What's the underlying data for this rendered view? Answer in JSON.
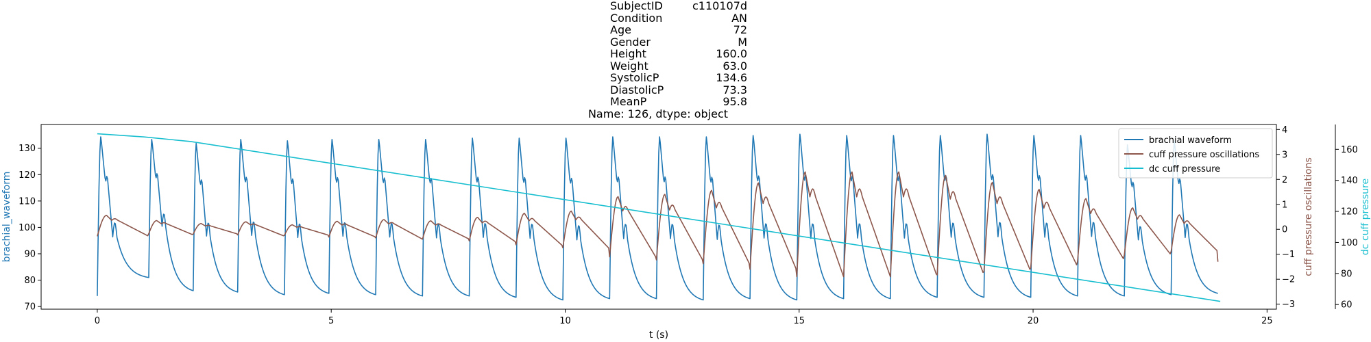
{
  "title": {
    "rows": [
      {
        "key": "SubjectID",
        "value": "c110107d"
      },
      {
        "key": "Condition",
        "value": "AN"
      },
      {
        "key": "Age",
        "value": "72"
      },
      {
        "key": "Gender",
        "value": "M"
      },
      {
        "key": "Height",
        "value": "160.0"
      },
      {
        "key": "Weight",
        "value": "63.0"
      },
      {
        "key": "SystolicP",
        "value": "134.6"
      },
      {
        "key": "DiastolicP",
        "value": "73.3"
      },
      {
        "key": "MeanP",
        "value": "95.8"
      }
    ],
    "footer": "Name: 126, dtype: object"
  },
  "chart_data": {
    "type": "line",
    "xlabel": "t (s)",
    "xlim": [
      -1.2,
      25.2
    ],
    "xticks": [
      0,
      5,
      10,
      15,
      20,
      25
    ],
    "axes": [
      {
        "id": "left",
        "ylabel": "brachial_waveform",
        "ylim": [
          69,
          139
        ],
        "yticks": [
          70,
          80,
          90,
          100,
          110,
          120,
          130
        ],
        "color": "#1f77b4"
      },
      {
        "id": "right1",
        "ylabel": "cuff pressure oscillations",
        "ylim": [
          -3.2,
          4.2
        ],
        "yticks": [
          -3,
          -2,
          -1,
          0,
          1,
          2,
          3,
          4
        ],
        "color": "#8c564b"
      },
      {
        "id": "right2",
        "ylabel": "dc cuff pressure",
        "ylim": [
          57,
          176
        ],
        "yticks": [
          60,
          80,
          100,
          120,
          140,
          160
        ],
        "color": "#17becf"
      }
    ],
    "legend": {
      "placement": "top-right"
    },
    "series": [
      {
        "name": "brachial waveform",
        "axis": "left",
        "color": "#1f77b4",
        "beats": [
          {
            "t": 0.0,
            "peak": 134.5,
            "trough": 74.0
          },
          {
            "t": 1.1,
            "peak": 133.5,
            "trough": 81.0
          },
          {
            "t": 2.05,
            "peak": 132.0,
            "trough": 76.0
          },
          {
            "t": 3.0,
            "peak": 133.5,
            "trough": 75.5
          },
          {
            "t": 4.0,
            "peak": 133.0,
            "trough": 74.5
          },
          {
            "t": 4.95,
            "peak": 133.5,
            "trough": 75.0
          },
          {
            "t": 5.95,
            "peak": 133.5,
            "trough": 74.5
          },
          {
            "t": 6.95,
            "peak": 133.5,
            "trough": 74.0
          },
          {
            "t": 7.95,
            "peak": 134.0,
            "trough": 74.0
          },
          {
            "t": 8.95,
            "peak": 134.0,
            "trough": 73.5
          },
          {
            "t": 9.95,
            "peak": 134.0,
            "trough": 72.5
          },
          {
            "t": 10.95,
            "peak": 134.5,
            "trough": 73.0
          },
          {
            "t": 11.95,
            "peak": 134.5,
            "trough": 73.0
          },
          {
            "t": 12.95,
            "peak": 134.5,
            "trough": 72.5
          },
          {
            "t": 13.95,
            "peak": 135.0,
            "trough": 73.0
          },
          {
            "t": 14.95,
            "peak": 135.5,
            "trough": 72.5
          },
          {
            "t": 15.95,
            "peak": 135.0,
            "trough": 73.0
          },
          {
            "t": 16.95,
            "peak": 135.0,
            "trough": 73.0
          },
          {
            "t": 17.95,
            "peak": 135.0,
            "trough": 73.5
          },
          {
            "t": 18.95,
            "peak": 135.5,
            "trough": 73.5
          },
          {
            "t": 19.95,
            "peak": 135.0,
            "trough": 73.5
          },
          {
            "t": 20.95,
            "peak": 135.0,
            "trough": 74.0
          },
          {
            "t": 21.95,
            "peak": 131.5,
            "trough": 74.0
          },
          {
            "t": 22.95,
            "peak": 133.0,
            "trough": 74.5
          }
        ],
        "end_t": 23.95,
        "end_value": 75.0
      },
      {
        "name": "cuff pressure oscillations",
        "axis": "right1",
        "color": "#8c564b",
        "beats": [
          {
            "t": 0.0,
            "amp": 0.8,
            "base": 0.0
          },
          {
            "t": 1.1,
            "amp": 0.5,
            "base": 0.0
          },
          {
            "t": 2.05,
            "amp": 0.4,
            "base": -0.05
          },
          {
            "t": 3.0,
            "amp": 0.5,
            "base": -0.05
          },
          {
            "t": 4.0,
            "amp": 0.4,
            "base": -0.1
          },
          {
            "t": 4.95,
            "amp": 0.6,
            "base": -0.1
          },
          {
            "t": 5.95,
            "amp": 0.7,
            "base": -0.1
          },
          {
            "t": 6.95,
            "amp": 0.7,
            "base": -0.15
          },
          {
            "t": 7.95,
            "amp": 0.9,
            "base": -0.15
          },
          {
            "t": 8.95,
            "amp": 1.2,
            "base": -0.2
          },
          {
            "t": 9.95,
            "amp": 1.4,
            "base": -0.25
          },
          {
            "t": 10.95,
            "amp": 2.3,
            "base": -0.3
          },
          {
            "t": 11.95,
            "amp": 2.5,
            "base": -0.35
          },
          {
            "t": 12.95,
            "amp": 2.8,
            "base": -0.4
          },
          {
            "t": 13.95,
            "amp": 3.3,
            "base": -0.45
          },
          {
            "t": 14.95,
            "amp": 4.0,
            "base": -0.5
          },
          {
            "t": 15.95,
            "amp": 4.0,
            "base": -0.5
          },
          {
            "t": 16.95,
            "amp": 4.0,
            "base": -0.5
          },
          {
            "t": 17.95,
            "amp": 3.8,
            "base": -0.5
          },
          {
            "t": 18.95,
            "amp": 3.4,
            "base": -0.5
          },
          {
            "t": 19.95,
            "amp": 3.0,
            "base": -0.5
          },
          {
            "t": 20.95,
            "amp": 2.4,
            "base": -0.45
          },
          {
            "t": 21.95,
            "amp": 1.8,
            "base": -0.4
          },
          {
            "t": 22.95,
            "amp": 1.4,
            "base": -0.4
          }
        ],
        "end_t": 23.95,
        "end_value": -1.3
      },
      {
        "name": "dc cuff pressure",
        "axis": "right2",
        "color": "#17becf",
        "x": [
          0,
          1.0,
          2.0,
          24.0
        ],
        "values": [
          170.0,
          168.0,
          165.0,
          62.0
        ]
      }
    ]
  }
}
